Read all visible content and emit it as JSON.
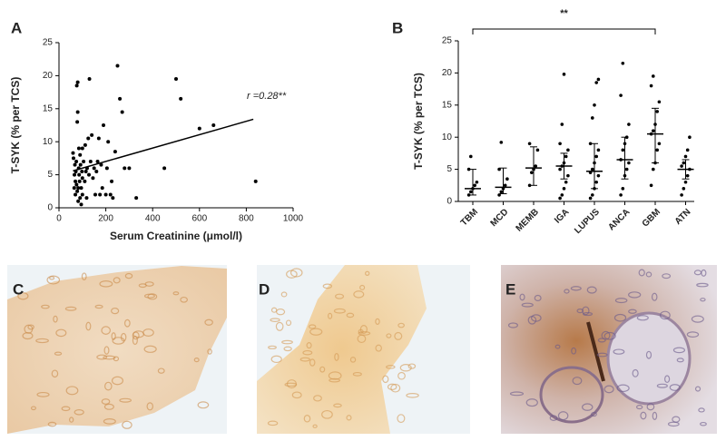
{
  "chart_data": [
    {
      "type": "scatter",
      "label": "A",
      "x_label": "Serum Creatinine (μmol/l)",
      "y_label": "T-SYK (% per TCS)",
      "annotation": "r =0.28**",
      "xlim": [
        0,
        1000
      ],
      "xticks": [
        0,
        200,
        400,
        600,
        800,
        1000
      ],
      "ylim": [
        0,
        25
      ],
      "yticks": [
        0,
        5,
        10,
        15,
        20,
        25
      ],
      "color": "#000000",
      "x": [
        60,
        62,
        65,
        66,
        68,
        70,
        70,
        72,
        74,
        75,
        76,
        78,
        80,
        80,
        82,
        84,
        85,
        86,
        88,
        90,
        92,
        95,
        98,
        100,
        100,
        105,
        110,
        112,
        115,
        118,
        120,
        125,
        128,
        130,
        135,
        140,
        145,
        150,
        155,
        160,
        165,
        170,
        175,
        180,
        185,
        190,
        200,
        205,
        210,
        220,
        225,
        230,
        240,
        250,
        260,
        270,
        280,
        300,
        330,
        450,
        500,
        520,
        600,
        660,
        840,
        78,
        82,
        90,
        95,
        100
      ],
      "values": [
        8.3,
        7.5,
        3,
        5,
        6.5,
        2,
        4,
        5.5,
        7,
        3.5,
        18.5,
        2.5,
        19,
        14.5,
        1,
        6,
        9,
        5,
        4,
        1.5,
        6.5,
        3,
        5.5,
        9,
        2,
        7,
        4,
        9.5,
        5.5,
        1.5,
        6,
        10.5,
        5,
        19.5,
        7,
        11,
        4.5,
        6,
        2,
        5.5,
        7,
        10.5,
        2,
        6.5,
        3,
        12.5,
        2,
        6,
        10,
        2,
        4,
        1.5,
        8.5,
        21.5,
        16.5,
        14.5,
        6,
        6,
        1.5,
        6,
        19.5,
        16.5,
        12,
        12.5,
        4,
        13,
        3,
        8,
        0.5,
        4.5
      ],
      "fit_line": {
        "x": [
          60,
          830
        ],
        "y": [
          5.6,
          13.4
        ]
      }
    },
    {
      "type": "dot",
      "label": "B",
      "y_label": "T-SYK (% per TCS)",
      "annotation": "**",
      "ylim": [
        0,
        25
      ],
      "yticks": [
        0,
        5,
        10,
        15,
        20,
        25
      ],
      "color": "#000000",
      "categories": [
        "TBM",
        "MCD",
        "MEMB",
        "IGA",
        "LUPUS",
        "ANCA",
        "GBM",
        "ATN"
      ],
      "points": [
        [
          1,
          1.5,
          2,
          2.5,
          3,
          5,
          7
        ],
        [
          1,
          1.5,
          2,
          2.5,
          3.5,
          5,
          9.2
        ],
        [
          2.5,
          4.5,
          5,
          5.5,
          8,
          9
        ],
        [
          0.5,
          1,
          2,
          3,
          4,
          5,
          5.5,
          6,
          7,
          8,
          9,
          12,
          19.8
        ],
        [
          0.5,
          1,
          2,
          3,
          4,
          4.5,
          5,
          6,
          7,
          8,
          9,
          13,
          15,
          18.5,
          19
        ],
        [
          1,
          2,
          4,
          5,
          6,
          6.5,
          8,
          9,
          10,
          12,
          16.5,
          21.5
        ],
        [
          2.5,
          5,
          6,
          8,
          9,
          10.5,
          11,
          12,
          14,
          15.5,
          18,
          19.5
        ],
        [
          1,
          2,
          3,
          4,
          5,
          5.5,
          6,
          7,
          8,
          10
        ]
      ],
      "median": [
        2,
        2.2,
        5.2,
        5.5,
        4.7,
        6.5,
        10.5,
        5
      ],
      "lower": [
        1,
        1.2,
        2.5,
        3.5,
        2,
        3.5,
        6,
        3.5
      ],
      "upper": [
        5,
        5.2,
        8.5,
        7.5,
        9,
        10,
        14.5,
        6.5
      ]
    }
  ],
  "panels": [
    "C",
    "D",
    "E"
  ]
}
